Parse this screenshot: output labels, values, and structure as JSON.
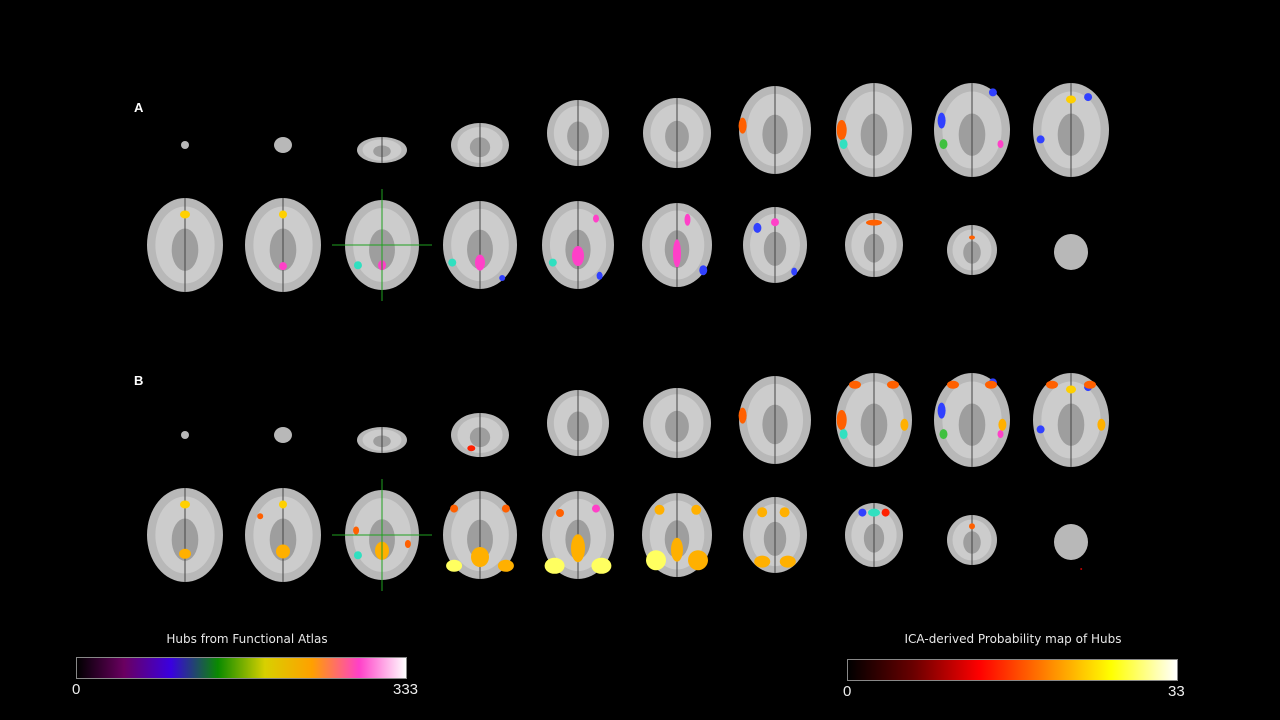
{
  "panels": [
    {
      "label": "A"
    },
    {
      "label": "B"
    }
  ],
  "colorbars": [
    {
      "title": "Hubs from Functional Atlas",
      "min": "0",
      "max": "333",
      "colormap": [
        "#000000",
        "#6a0060",
        "#3a00e0",
        "#0a8a00",
        "#d8d000",
        "#ffa000",
        "#ff40c8",
        "#ffffff"
      ]
    },
    {
      "title": "ICA-derived  Probability map of Hubs",
      "min": "0",
      "max": "33",
      "colormap": [
        "#000000",
        "#6a0000",
        "#ff0000",
        "#ff8000",
        "#ffff00",
        "#ffffff"
      ]
    }
  ],
  "colors": {
    "background": "#000000",
    "brain": "#b8b8b8",
    "crosshair": "#1fa01f"
  }
}
